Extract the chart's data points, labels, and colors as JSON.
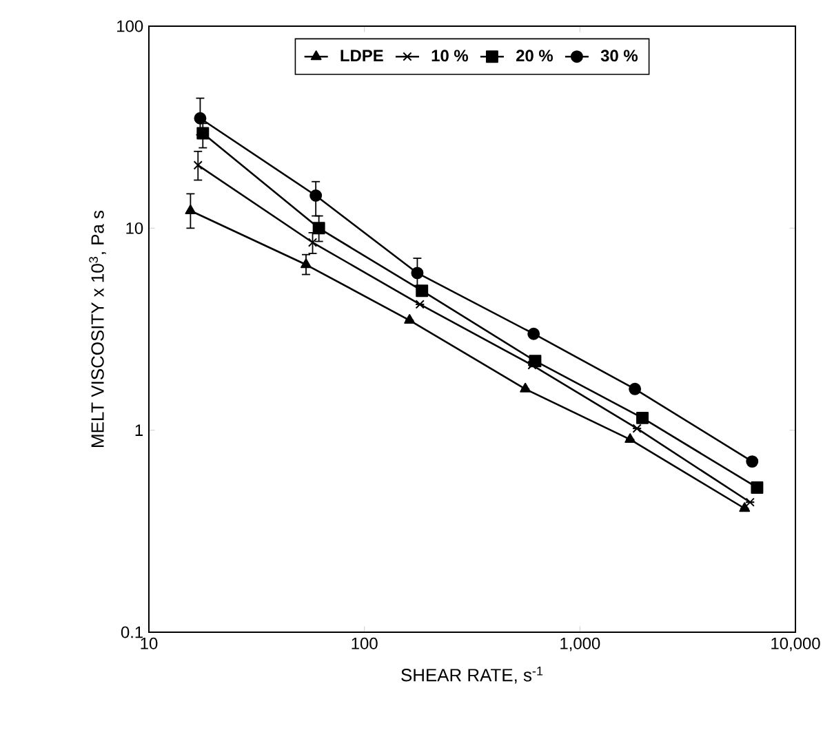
{
  "chart_data": {
    "type": "line",
    "xlabel": "SHEAR RATE, s$^{-1}$",
    "ylabel": "MELT VISCOSITY x 10$^{3}$, Pa s",
    "log": "xy",
    "xlim": [
      10,
      10000
    ],
    "ylim": [
      0.1,
      100
    ],
    "xticks": [
      10,
      100,
      {
        "value": 1000,
        "label": "1,000"
      },
      {
        "value": 10000,
        "label": "10,000"
      }
    ],
    "yticks": [
      0.1,
      1,
      10,
      100
    ],
    "grid": false,
    "legend": "top",
    "line_style": "solid",
    "series": [
      {
        "name": "LDPE",
        "color": "#000000",
        "marker": "triangle",
        "x": [
          15.6,
          53.6,
          162,
          558,
          1710,
          5810
        ],
        "values": [
          12.2,
          6.6,
          3.5,
          1.6,
          0.9,
          0.41
        ],
        "errors": [
          [
            10,
            14.8
          ],
          [
            5.9,
            7.4
          ],
          null,
          null,
          null,
          null
        ]
      },
      {
        "name": "10 %",
        "color": "#000000",
        "marker": "cross",
        "x": [
          16.9,
          57.5,
          181,
          600,
          1840,
          6160
        ],
        "values": [
          20.5,
          8.5,
          4.2,
          2.1,
          1.02,
          0.44
        ],
        "errors": [
          [
            17.3,
            24
          ],
          [
            7.5,
            9.5
          ],
          null,
          null,
          null,
          null
        ]
      },
      {
        "name": "20 %",
        "color": "#000000",
        "marker": "square",
        "x": [
          17.8,
          61.5,
          185,
          620,
          1950,
          6640
        ],
        "values": [
          29.5,
          10,
          4.9,
          2.2,
          1.15,
          0.52
        ],
        "errors": [
          [
            25,
            33
          ],
          [
            8.6,
            11.5
          ],
          null,
          null,
          null,
          null
        ]
      },
      {
        "name": "30 %",
        "color": "#000000",
        "marker": "circle",
        "x": [
          17.3,
          59.5,
          176,
          610,
          1800,
          6300
        ],
        "values": [
          35,
          14.5,
          6,
          3,
          1.6,
          0.7
        ],
        "errors": [
          [
            29,
            44
          ],
          [
            11.5,
            17
          ],
          [
            5.2,
            7.1
          ],
          null,
          null,
          null
        ]
      }
    ]
  }
}
